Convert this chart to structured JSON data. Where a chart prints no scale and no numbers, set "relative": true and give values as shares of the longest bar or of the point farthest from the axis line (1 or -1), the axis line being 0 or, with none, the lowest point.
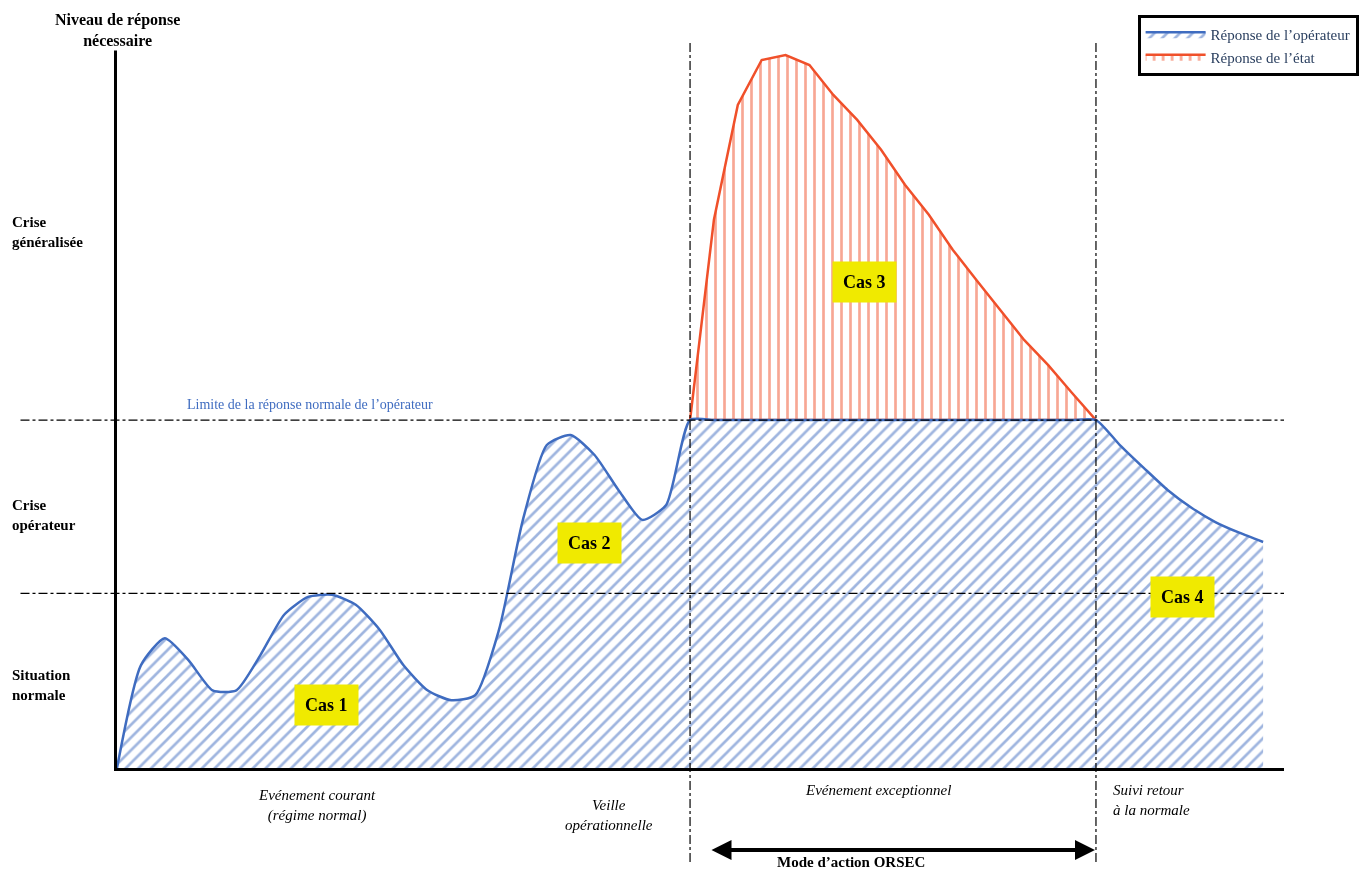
{
  "chart_data": {
    "type": "area",
    "relative": true,
    "stacked": true,
    "ylabel": "Niveau de réponse\nnécessaire",
    "categories": [
      null,
      null,
      null,
      null,
      null,
      null,
      null,
      null,
      null,
      null,
      null,
      null,
      null,
      null,
      null,
      null,
      null,
      null,
      null,
      null,
      null,
      null,
      null,
      null,
      null,
      null,
      null,
      null,
      null,
      null,
      null,
      null,
      null,
      null,
      null,
      null,
      null,
      null,
      null,
      null,
      null,
      null,
      null,
      null,
      null,
      null,
      null,
      null,
      null
    ],
    "series": [
      {
        "name": "Réponse de l’opérateur",
        "color": "#3f6cc0",
        "values": [
          0,
          0.144,
          0.182,
          0.151,
          0.109,
          0.109,
          0.158,
          0.215,
          0.24,
          0.243,
          0.229,
          0.194,
          0.144,
          0.109,
          0.095,
          0.102,
          0.194,
          0.348,
          0.453,
          0.467,
          0.439,
          0.39,
          0.348,
          0.369,
          0.488,
          0.488,
          0.488,
          0.488,
          0.488,
          0.488,
          0.488,
          0.488,
          0.488,
          0.488,
          0.488,
          0.488,
          0.488,
          0.488,
          0.488,
          0.488,
          0.488,
          0.488,
          0.453,
          0.421,
          0.39,
          0.365,
          0.345,
          0.33,
          0.317
        ]
      },
      {
        "name": "Réponse de l’état",
        "color": "#f0502a",
        "values": [
          null,
          null,
          null,
          null,
          null,
          null,
          null,
          null,
          null,
          null,
          null,
          null,
          null,
          null,
          null,
          null,
          null,
          null,
          null,
          null,
          null,
          null,
          null,
          null,
          0,
          0.281,
          0.442,
          0.505,
          0.512,
          0.498,
          0.456,
          0.421,
          0.379,
          0.33,
          0.288,
          0.239,
          0.196,
          0.154,
          0.112,
          0.077,
          0.038,
          0,
          null,
          null,
          null,
          null,
          null,
          null,
          null
        ]
      }
    ],
    "ref_lines": [
      {
        "axis": "y",
        "value": 0.488,
        "label": "Limite de la réponse normale de l’opérateur",
        "line_style": "dashed"
      },
      {
        "axis": "y",
        "value": 0.245,
        "line_style": "dashed"
      }
    ],
    "annotations": [
      "Situation\nnormale",
      "Crise\nopérateur",
      "Crise\ngénéralisée",
      "Evénement courant\n(régime normal)",
      "Veille\nopérationnelle",
      "Evénement exceptionnel",
      "Suivi retour\nà la normale",
      "Mode d’action ORSEC",
      "Cas 1",
      "Cas 2",
      "Cas 3",
      "Cas 4"
    ],
    "legend": "top right",
    "tick_labels": false
  }
}
